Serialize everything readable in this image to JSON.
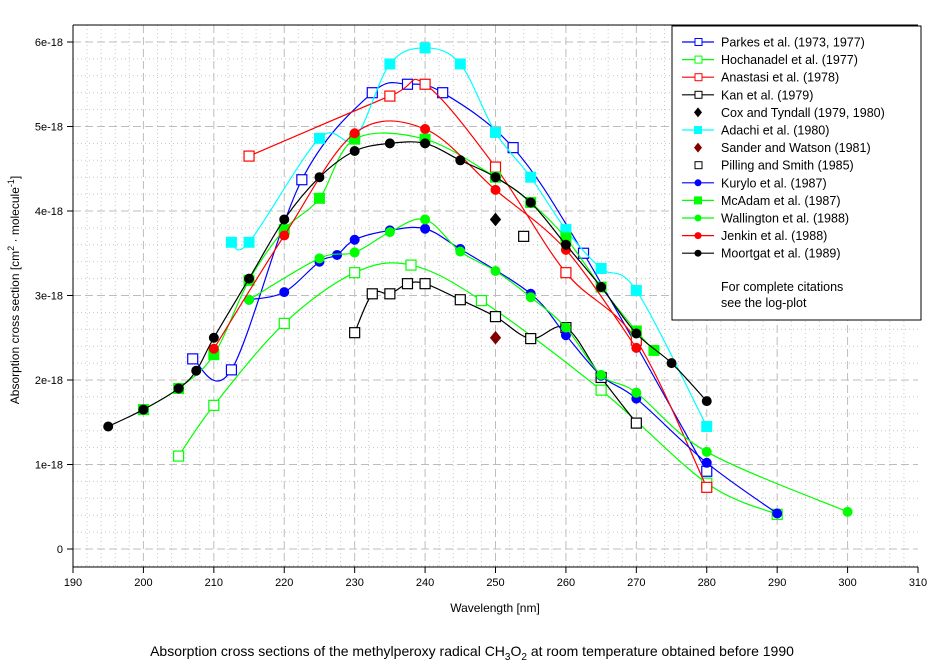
{
  "chart_data": {
    "type": "line",
    "title": "",
    "caption": {
      "pre": "Absorption cross sections of the methylperoxy radical CH",
      "sub1": "3",
      "mid": "O",
      "sub2": "2",
      "post": " at room temperature obtained before 1990"
    },
    "xlabel": "Wavelength [nm]",
    "ylabel": {
      "pre": "Absorption cross section [cm",
      "sup1": "2",
      "mid": " · molecule",
      "sup2": "-1",
      "post": "]"
    },
    "xlim": [
      190,
      310
    ],
    "ylim": [
      0,
      6.2e-18
    ],
    "x_ticks": [
      "190",
      "200",
      "210",
      "220",
      "230",
      "240",
      "250",
      "260",
      "270",
      "280",
      "290",
      "300",
      "310"
    ],
    "x_tick_values": [
      190,
      200,
      210,
      220,
      230,
      240,
      250,
      260,
      270,
      280,
      290,
      300,
      310
    ],
    "y_ticks": [
      "0",
      "1e-18",
      "2e-18",
      "3e-18",
      "4e-18",
      "5e-18",
      "6e-18"
    ],
    "y_tick_values": [
      0,
      1e-18,
      2e-18,
      3e-18,
      4e-18,
      5e-18,
      6e-18
    ],
    "grid": true,
    "legend_position": "top-right",
    "legend_note": [
      "For complete citations",
      "see the log-plot"
    ],
    "y_unit_scale": 1e-18,
    "series": [
      {
        "name": "Parkes et al. (1973, 1977)",
        "color": "#0000ff",
        "marker": "open-square",
        "line": true,
        "x": [
          207,
          212.5,
          222.5,
          232.5,
          237.5,
          242.5,
          252.5,
          262.5,
          280
        ],
        "y": [
          2.25,
          2.12,
          4.37,
          5.4,
          5.5,
          5.4,
          4.75,
          3.5,
          0.92
        ]
      },
      {
        "name": "Hochanadel et al. (1977)",
        "color": "#00ff00",
        "marker": "open-square",
        "line": true,
        "x": [
          205,
          210,
          220,
          230,
          238,
          248,
          265,
          280,
          290
        ],
        "y": [
          1.1,
          1.7,
          2.67,
          3.27,
          3.36,
          2.94,
          1.88,
          0.78,
          0.41
        ]
      },
      {
        "name": "Anastasi et al. (1978)",
        "color": "#ff0000",
        "marker": "open-square",
        "line": true,
        "x": [
          215,
          235,
          240,
          250,
          260,
          270,
          280
        ],
        "y": [
          4.65,
          5.36,
          5.5,
          4.52,
          3.27,
          2.47,
          0.73
        ]
      },
      {
        "name": "Kan et al. (1979)",
        "color": "#000000",
        "marker": "open-square",
        "line": true,
        "x": [
          230,
          232.5,
          235,
          237.5,
          240,
          245,
          250,
          255,
          260,
          265,
          270
        ],
        "y": [
          2.56,
          3.02,
          3.02,
          3.14,
          3.14,
          2.95,
          2.75,
          2.49,
          2.62,
          2.03,
          1.49
        ]
      },
      {
        "name": "Cox and Tyndall (1979, 1980)",
        "color": "#000000",
        "marker": "diamond",
        "line": false,
        "x": [
          250
        ],
        "y": [
          3.9
        ]
      },
      {
        "name": "Adachi et al. (1980)",
        "color": "#00ffff",
        "marker": "filled-square",
        "line": true,
        "x": [
          212.5,
          215,
          225,
          230,
          235,
          240,
          245,
          250,
          255,
          260,
          265,
          270,
          280
        ],
        "y": [
          3.63,
          3.63,
          4.86,
          4.86,
          5.74,
          5.93,
          5.74,
          4.93,
          4.4,
          3.78,
          3.32,
          3.06,
          1.45
        ]
      },
      {
        "name": "Sander and Watson (1981)",
        "color": "#800000",
        "marker": "diamond",
        "line": false,
        "x": [
          250
        ],
        "y": [
          2.5
        ]
      },
      {
        "name": "Pilling and Smith (1985)",
        "color": "#000000",
        "marker": "open-square",
        "line": false,
        "x": [
          254
        ],
        "y": [
          3.7
        ]
      },
      {
        "name": "Kurylo et al. (1987)",
        "color": "#0000ff",
        "marker": "dot",
        "line": true,
        "x": [
          215,
          220,
          225,
          227.5,
          230,
          235,
          240,
          245,
          255,
          260,
          265,
          270,
          280,
          290
        ],
        "y": [
          2.95,
          3.04,
          3.4,
          3.48,
          3.66,
          3.77,
          3.79,
          3.55,
          3.02,
          2.53,
          2.05,
          1.78,
          1.02,
          0.42
        ]
      },
      {
        "name": "McAdam et al. (1987)",
        "color": "#00ff00",
        "marker": "filled-square",
        "line": true,
        "x": [
          200,
          205,
          210,
          215,
          220,
          225,
          230,
          240,
          250,
          255,
          260,
          265,
          270,
          272.5
        ],
        "y": [
          1.65,
          1.9,
          2.3,
          3.18,
          3.78,
          4.15,
          4.85,
          4.85,
          4.4,
          4.1,
          3.68,
          3.1,
          2.58,
          2.35
        ]
      },
      {
        "name": "Wallington et al. (1988)",
        "color": "#00ff00",
        "marker": "dot",
        "line": true,
        "x": [
          215,
          225,
          230,
          235,
          240,
          245,
          250,
          255,
          260,
          265,
          270,
          280,
          300
        ],
        "y": [
          2.95,
          3.44,
          3.51,
          3.75,
          3.9,
          3.52,
          3.29,
          2.98,
          2.62,
          2.06,
          1.85,
          1.15,
          0.44
        ]
      },
      {
        "name": "Jenkin et al. (1988)",
        "color": "#ff0000",
        "marker": "dot",
        "line": true,
        "x": [
          210,
          220,
          230,
          240,
          250,
          260,
          270
        ],
        "y": [
          2.37,
          3.71,
          4.92,
          4.97,
          4.25,
          3.54,
          2.38
        ]
      },
      {
        "name": "Moortgat et al. (1989)",
        "color": "#000000",
        "marker": "dot",
        "line": true,
        "x": [
          195,
          200,
          205,
          207.5,
          210,
          215,
          220,
          225,
          230,
          235,
          240,
          245,
          250,
          255,
          260,
          265,
          270,
          275,
          280
        ],
        "y": [
          1.45,
          1.65,
          1.9,
          2.11,
          2.5,
          3.2,
          3.9,
          4.4,
          4.71,
          4.8,
          4.8,
          4.6,
          4.4,
          4.1,
          3.6,
          3.1,
          2.55,
          2.2,
          1.75
        ]
      }
    ]
  }
}
